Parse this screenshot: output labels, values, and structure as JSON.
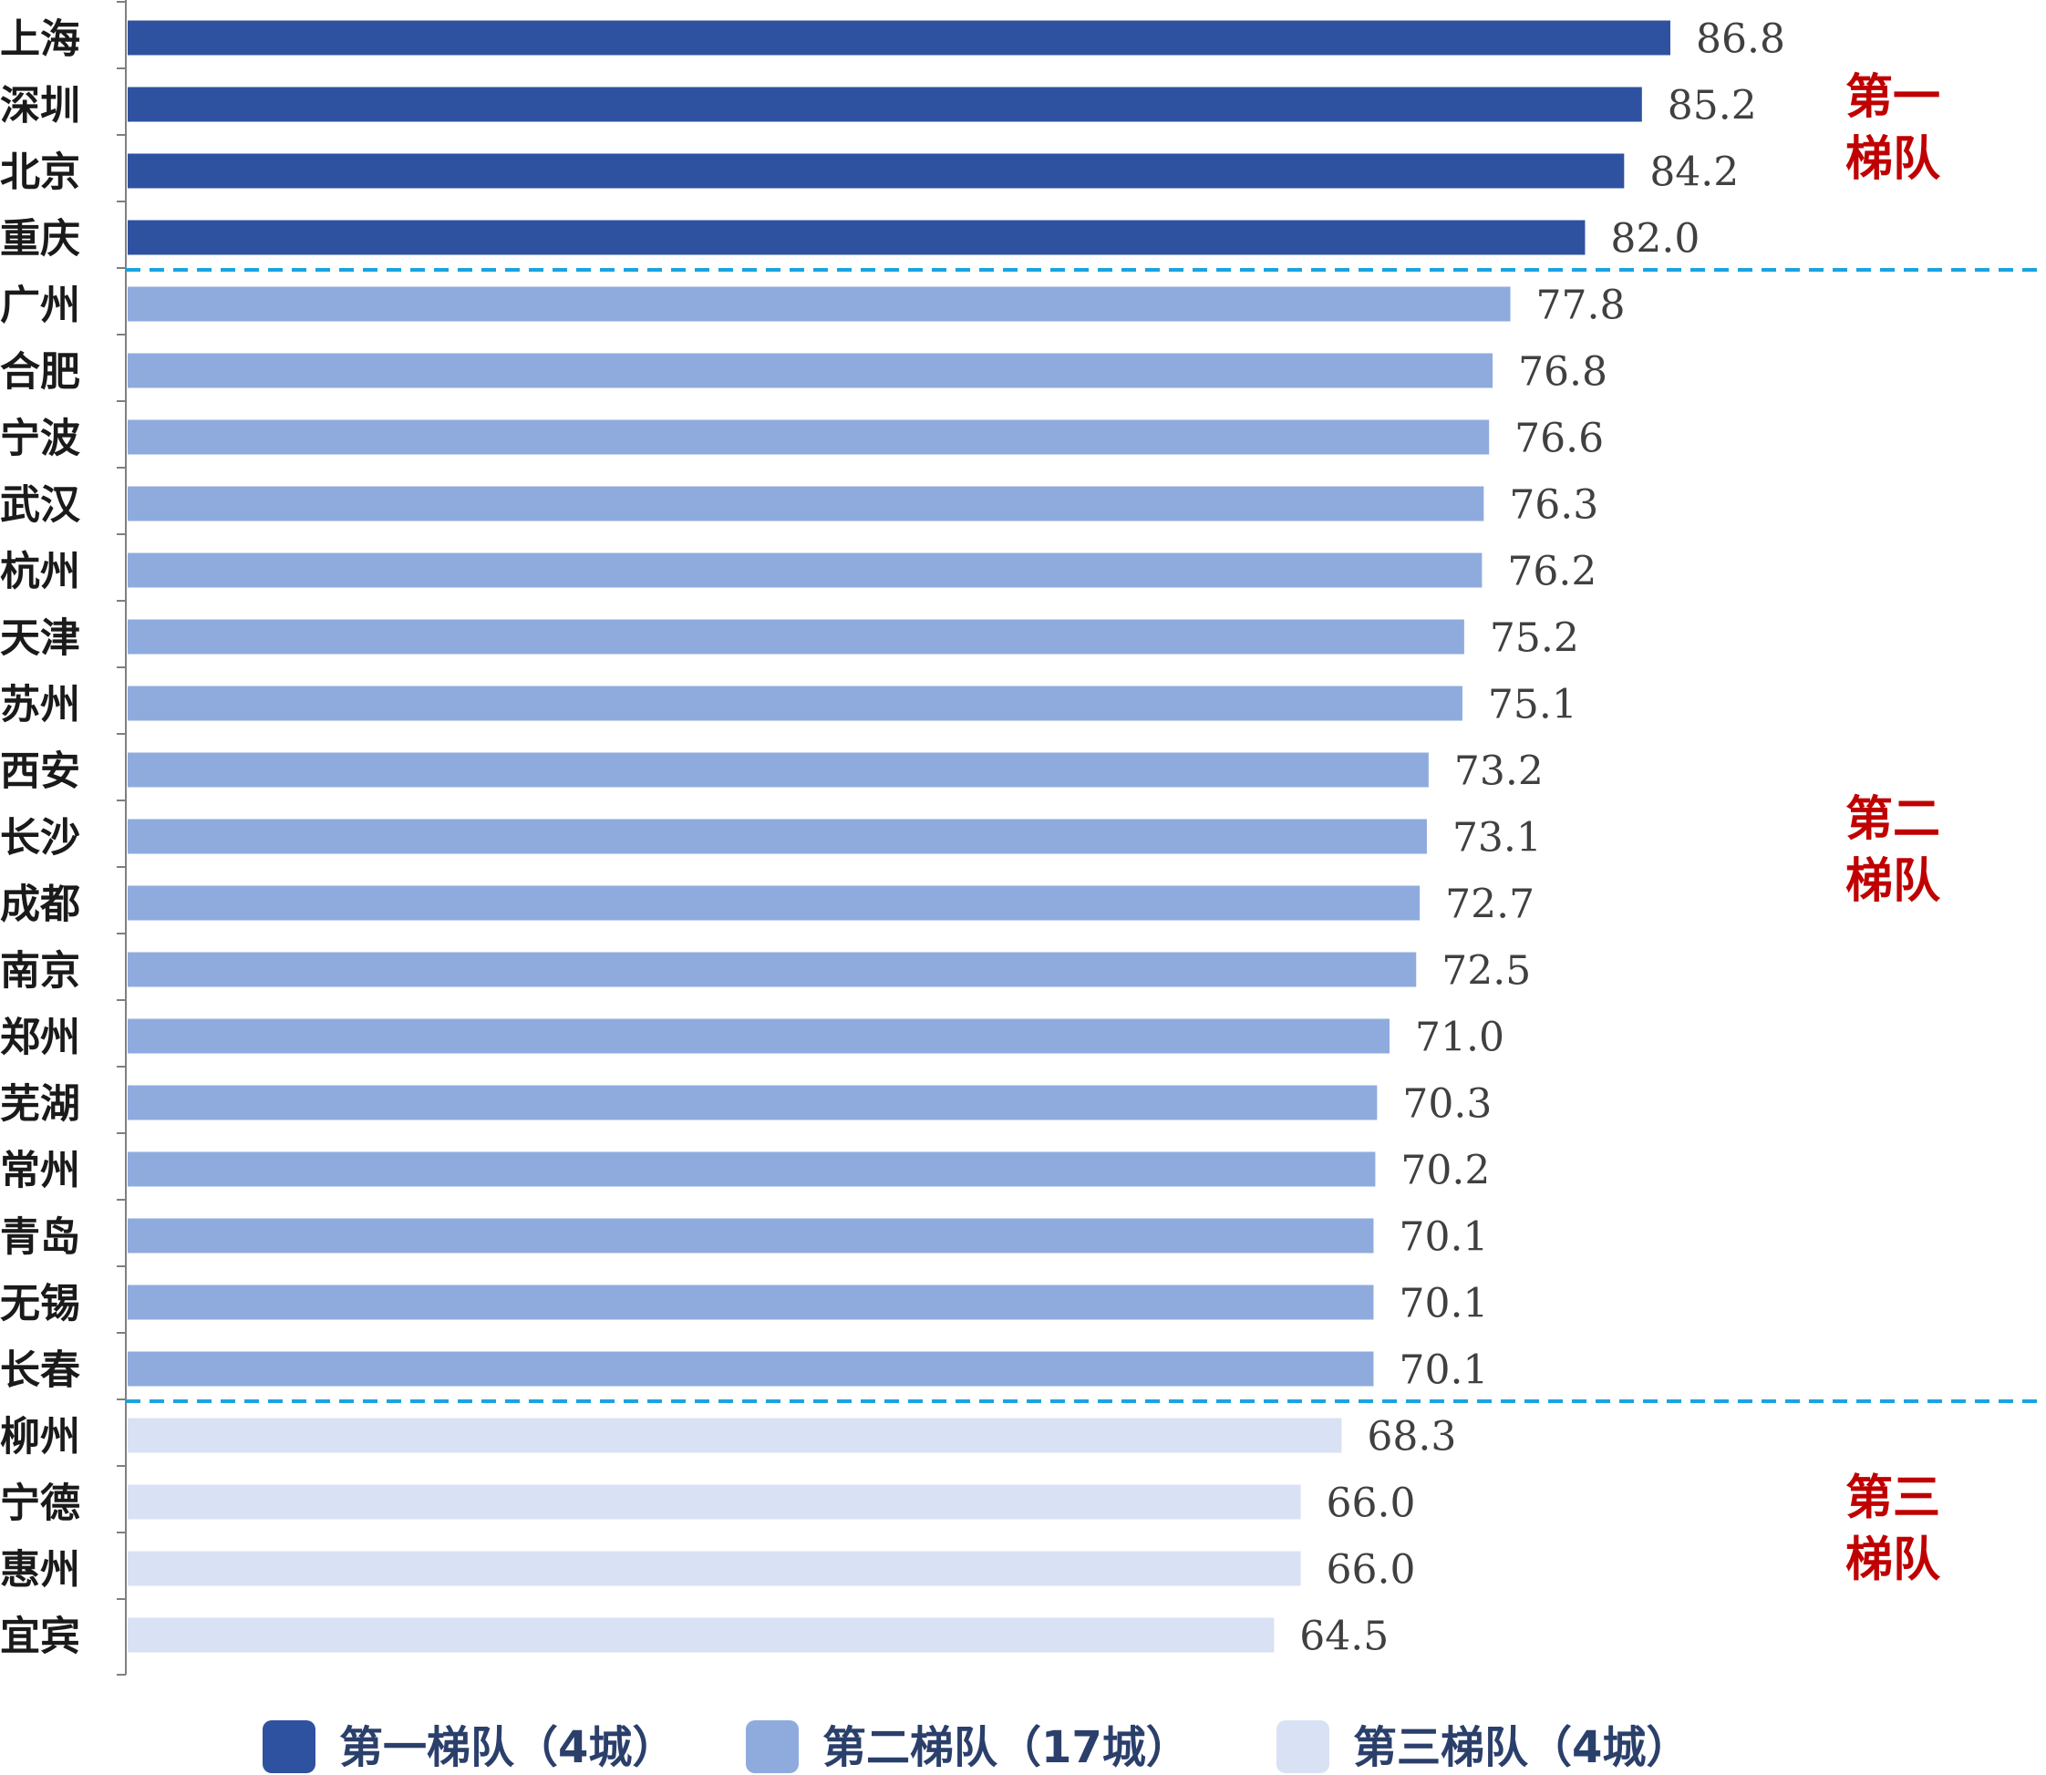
{
  "chart_data": {
    "type": "bar",
    "orientation": "horizontal",
    "categories": [
      "上海",
      "深圳",
      "北京",
      "重庆",
      "广州",
      "合肥",
      "宁波",
      "武汉",
      "杭州",
      "天津",
      "苏州",
      "西安",
      "长沙",
      "成都",
      "南京",
      "郑州",
      "芜湖",
      "常州",
      "青岛",
      "无锡",
      "长春",
      "柳州",
      "宁德",
      "惠州",
      "宜宾"
    ],
    "values": [
      86.8,
      85.2,
      84.2,
      82.0,
      77.8,
      76.8,
      76.6,
      76.3,
      76.2,
      75.2,
      75.1,
      73.2,
      73.1,
      72.7,
      72.5,
      71.0,
      70.3,
      70.2,
      70.1,
      70.1,
      70.1,
      68.3,
      66.0,
      66.0,
      64.5
    ],
    "value_labels": [
      "86.8",
      "85.2",
      "84.2",
      "82.0",
      "77.8",
      "76.8",
      "76.6",
      "76.3",
      "76.2",
      "75.2",
      "75.1",
      "73.2",
      "73.1",
      "72.7",
      "72.5",
      "71.0",
      "70.3",
      "70.2",
      "70.1",
      "70.1",
      "70.1",
      "68.3",
      "66.0",
      "66.0",
      "64.5"
    ],
    "tiers": [
      {
        "name": "第一",
        "name2": "梯队",
        "legend": "第一梯队（4城）",
        "color": "#2f52a0",
        "start": 0,
        "count": 4
      },
      {
        "name": "第二",
        "name2": "梯队",
        "legend": "第二梯队（17城）",
        "color": "#8fabde",
        "start": 4,
        "count": 17
      },
      {
        "name": "第三",
        "name2": "梯队",
        "legend": "第三梯队（4城）",
        "color": "#d9e1f4",
        "start": 21,
        "count": 4
      }
    ],
    "xlim": [
      0,
      86.8
    ],
    "grid": false,
    "legend_position": "bottom",
    "divider_color": "#1aa3e0",
    "title": "",
    "xlabel": "",
    "ylabel": ""
  }
}
